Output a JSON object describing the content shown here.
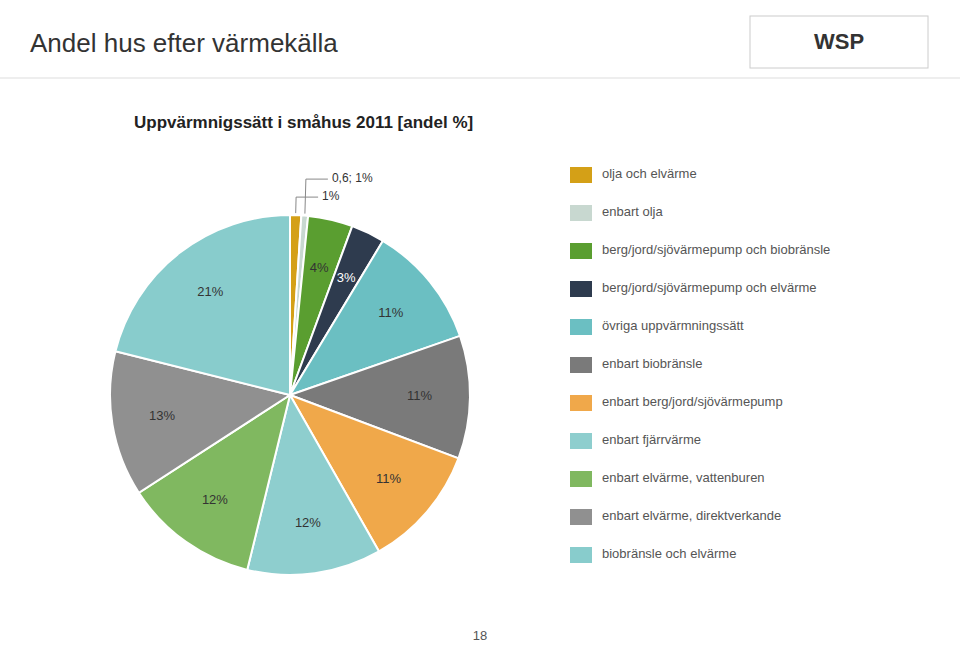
{
  "chart_data": {
    "type": "pie",
    "title": "Andel hus efter värmekälla",
    "subtitle": "Uppvärmnigssätt i småhus 2011 [andel %]",
    "categories": [
      "olja och elvärme",
      "enbart olja",
      "berg/jord/sjövärmepump och biobränsle",
      "berg/jord/sjövärmepump och elvärme",
      "övriga uppvärmningssätt",
      "enbart biobränsle",
      "enbart berg/jord/sjövärmepump",
      "enbart fjärrvärme",
      "enbart elvärme, vattenburen",
      "enbart elvärme, direktverkande",
      "biobränsle och elvärme"
    ],
    "values": [
      1,
      0.6,
      4,
      3,
      11,
      11,
      11,
      12,
      12,
      13,
      21
    ],
    "value_labels": [
      "1%",
      "0,6; 1%",
      "4%",
      "3%",
      "11%",
      "11%",
      "11%",
      "12%",
      "12%",
      "13%",
      "21%"
    ],
    "colors": [
      "#D4A017",
      "#C8D8D0",
      "#5A9E30",
      "#2E3B4E",
      "#6BBFC2",
      "#7A7A7A",
      "#F0A84A",
      "#8ECECE",
      "#80B860",
      "#909090",
      "#88CCCC"
    ],
    "data_labels": true,
    "legend": "right",
    "annotations": [
      "WSP",
      "18"
    ]
  }
}
